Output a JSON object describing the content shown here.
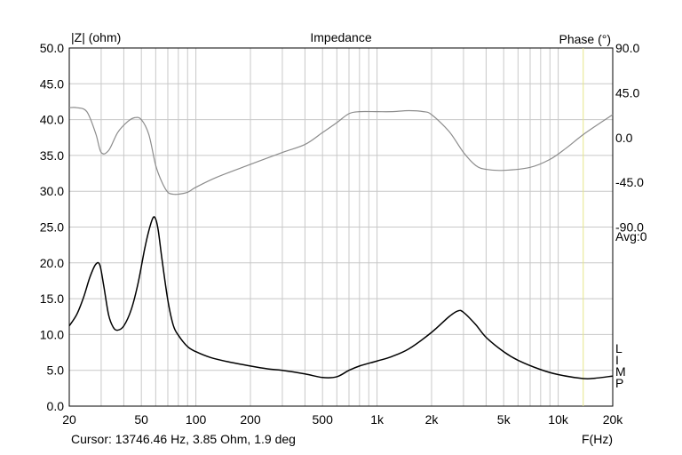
{
  "chart_data": {
    "type": "line",
    "title": "Impedance",
    "ylabel_left": "|Z| (ohm)",
    "ylabel_right": "Phase (°)",
    "xlabel": "F(Hz)",
    "xscale": "log",
    "xlim": [
      20,
      20000
    ],
    "ylim_left": [
      0,
      50
    ],
    "ylim_right": [
      -270,
      90
    ],
    "x_ticks": [
      20,
      50,
      100,
      200,
      500,
      1000,
      2000,
      5000,
      10000,
      20000
    ],
    "x_tick_labels": [
      "20",
      "50",
      "100",
      "200",
      "500",
      "1k",
      "2k",
      "5k",
      "10k",
      "20k"
    ],
    "y_ticks_left": [
      "0.0",
      "5.0",
      "10.0",
      "15.0",
      "20.0",
      "25.0",
      "30.0",
      "35.0",
      "40.0",
      "45.0",
      "50.0"
    ],
    "y_ticks_right": [
      "90.0",
      "45.0",
      "0.0",
      "-45.0",
      "-90.0"
    ],
    "side_labels": {
      "avg": "Avg:0",
      "vertical_letters": [
        "L",
        "I",
        "M",
        "P"
      ]
    },
    "grid": true,
    "cursor": {
      "frequency_hz": 13746.46,
      "text": "Cursor: 13746.46 Hz, 3.85 Ohm, 1.9 deg",
      "color": "#e6e68a"
    },
    "series": [
      {
        "name": "|Z|",
        "axis": "left",
        "color": "#000000",
        "x": [
          20,
          22,
          24,
          26,
          28,
          29.5,
          31,
          33,
          35,
          37,
          40,
          44,
          48,
          52,
          55,
          58,
          60,
          62,
          65,
          70,
          75,
          80,
          90,
          100,
          120,
          150,
          200,
          250,
          300,
          400,
          500,
          600,
          700,
          800,
          1000,
          1200,
          1500,
          2000,
          2500,
          2800,
          3000,
          3500,
          4000,
          5000,
          6000,
          8000,
          10000,
          13746,
          16000,
          20000
        ],
        "values": [
          11.2,
          12.8,
          15.2,
          18.0,
          19.8,
          19.7,
          16.8,
          12.7,
          11.0,
          10.6,
          11.2,
          13.5,
          17.2,
          21.8,
          24.5,
          26.3,
          26.1,
          24.5,
          20.5,
          14.8,
          11.3,
          9.9,
          8.3,
          7.6,
          6.8,
          6.2,
          5.6,
          5.2,
          5.0,
          4.5,
          4.0,
          4.1,
          5.0,
          5.6,
          6.3,
          6.9,
          8.0,
          10.3,
          12.5,
          13.3,
          13.1,
          11.4,
          9.6,
          7.6,
          6.4,
          5.1,
          4.4,
          3.85,
          3.9,
          4.2
        ]
      },
      {
        "name": "Phase",
        "axis": "right",
        "color": "#8c8c8c",
        "x": [
          20,
          22,
          25,
          28,
          30,
          33,
          37,
          42,
          46,
          50,
          55,
          60,
          65,
          70,
          75,
          80,
          90,
          100,
          130,
          200,
          300,
          400,
          500,
          600,
          700,
          800,
          1000,
          1200,
          1500,
          1800,
          2000,
          2500,
          3000,
          3500,
          4000,
          5000,
          7000,
          9000,
          11000,
          14000,
          20000
        ],
        "values": [
          30,
          30,
          26,
          4,
          -15,
          -13,
          5,
          16,
          20,
          18,
          3,
          -28,
          -45,
          -55,
          -57,
          -57,
          -55,
          -50,
          -40,
          -27,
          -15,
          -7,
          5,
          15,
          24,
          26,
          26,
          26,
          27,
          26,
          23,
          6,
          -15,
          -28,
          -32,
          -33,
          -30,
          -22,
          -11,
          4,
          23
        ]
      }
    ]
  }
}
